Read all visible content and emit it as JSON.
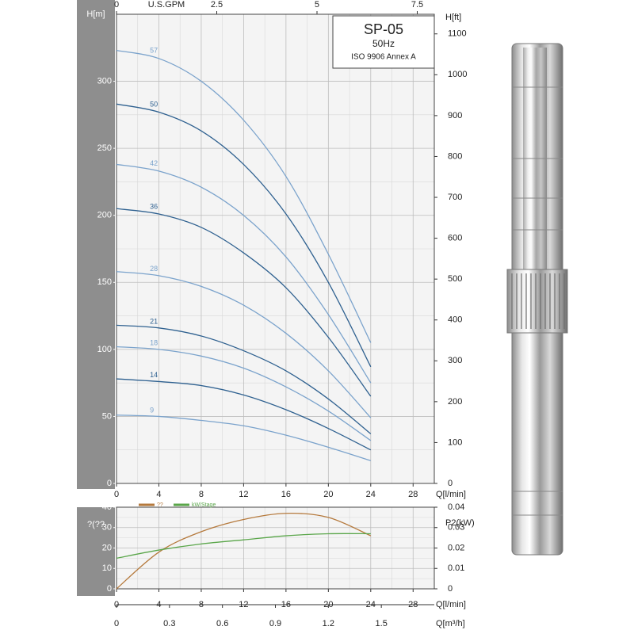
{
  "chart_data": [
    {
      "type": "line",
      "title": "SP-05",
      "subtitle": "50Hz",
      "annotation": "ISO 9906 Annex A",
      "x_label": "Q[l/min]",
      "y_label": "H[m]",
      "y2_label": "H[ft]",
      "x2_label": "U.S.GPM",
      "x": [
        0,
        4,
        8,
        12,
        16,
        20,
        24
      ],
      "xlim": [
        0,
        30
      ],
      "xticks": [
        0,
        4,
        8,
        12,
        16,
        20,
        24,
        28
      ],
      "x2lim": [
        0,
        7.925
      ],
      "x2ticks": [
        0,
        2.5,
        5,
        7.5
      ],
      "ylim": [
        0,
        350
      ],
      "yticks": [
        0,
        50,
        100,
        150,
        200,
        250,
        300
      ],
      "y2lim": [
        0,
        1148
      ],
      "y2ticks": [
        0,
        100,
        200,
        300,
        400,
        500,
        600,
        700,
        800,
        900,
        1000,
        1100
      ],
      "grid": true,
      "series": [
        {
          "name": "57",
          "color": "#7ba3cc",
          "values": [
            323,
            317,
            300,
            271,
            229,
            171,
            105
          ]
        },
        {
          "name": "50",
          "color": "#2f6190",
          "values": [
            283,
            277,
            263,
            238,
            201,
            150,
            87
          ]
        },
        {
          "name": "42",
          "color": "#7ba3cc",
          "values": [
            238,
            233,
            221,
            200,
            169,
            126,
            75
          ]
        },
        {
          "name": "36",
          "color": "#2f6190",
          "values": [
            205,
            201,
            191,
            172,
            146,
            109,
            65
          ]
        },
        {
          "name": "28",
          "color": "#7ba3cc",
          "values": [
            158,
            155,
            147,
            133,
            112,
            84,
            49
          ]
        },
        {
          "name": "21",
          "color": "#2f6190",
          "values": [
            118,
            116,
            110,
            99,
            84,
            63,
            37
          ]
        },
        {
          "name": "18",
          "color": "#7ba3cc",
          "values": [
            102,
            100,
            95,
            86,
            72,
            54,
            32
          ]
        },
        {
          "name": "14",
          "color": "#2f6190",
          "values": [
            78,
            76,
            73,
            66,
            55,
            41,
            25
          ]
        },
        {
          "name": "9",
          "color": "#7ba3cc",
          "values": [
            51,
            50,
            47,
            43,
            36,
            27,
            17
          ]
        }
      ]
    },
    {
      "type": "line",
      "x_label": "Q[l/min]",
      "x2_label": "Q[m³/h]",
      "y_label": "?(??",
      "y2_label": "P2(kW)",
      "x": [
        0,
        4,
        8,
        12,
        16,
        20,
        24
      ],
      "xlim": [
        0,
        30
      ],
      "xticks": [
        0,
        4,
        8,
        12,
        16,
        20,
        24,
        28
      ],
      "x2lim": [
        0,
        1.8
      ],
      "x2ticks": [
        0,
        0.3,
        0.6,
        0.9,
        1.2,
        1.5
      ],
      "ylim": [
        0,
        40
      ],
      "yticks": [
        0,
        10,
        20,
        30,
        40
      ],
      "y2lim": [
        0,
        0.04
      ],
      "y2ticks": [
        0,
        0.01,
        0.02,
        0.03,
        0.04
      ],
      "grid": true,
      "legend": "top-left",
      "series": [
        {
          "name": "??",
          "color": "#b5793c",
          "values": [
            0,
            18,
            28,
            34,
            37,
            35,
            26
          ]
        },
        {
          "name": "kW/Stage",
          "color": "#5aa64a",
          "axis": "y2",
          "values": [
            0.015,
            0.019,
            0.022,
            0.024,
            0.026,
            0.027,
            0.027
          ]
        }
      ]
    }
  ]
}
